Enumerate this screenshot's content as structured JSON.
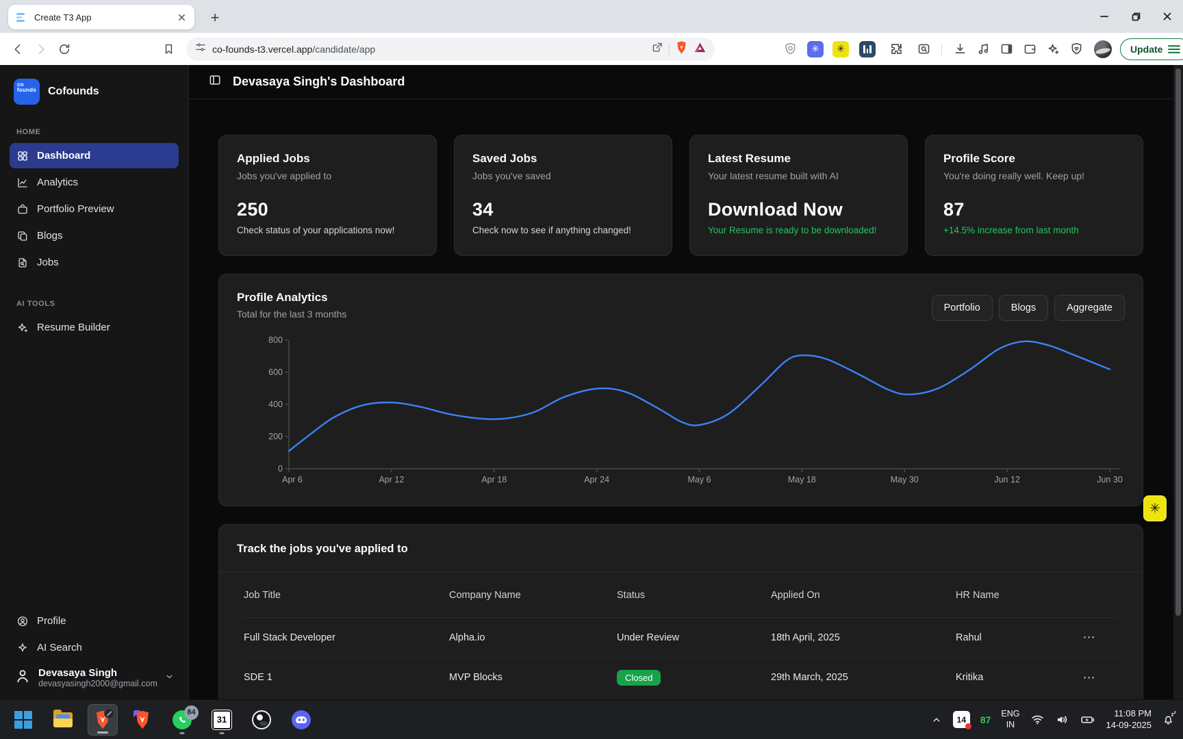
{
  "colors": {
    "accent_green": "#22c55e",
    "chart_line": "#3b82f6",
    "badge_green": "#17a34a",
    "active_nav": "#2b3b8f",
    "brand_blue": "#2563eb"
  },
  "browser": {
    "tab_title": "Create T3 App",
    "url_domain": "co-founds-t3.vercel.app",
    "url_path": "/candidate/app",
    "update_label": "Update"
  },
  "sidebar": {
    "brand": "Cofounds",
    "logo_line1": "co",
    "logo_line2": "founds",
    "section_home": "HOME",
    "section_ai": "AI TOOLS",
    "nav": [
      {
        "label": "Dashboard"
      },
      {
        "label": "Analytics"
      },
      {
        "label": "Portfolio Preview"
      },
      {
        "label": "Blogs"
      },
      {
        "label": "Jobs"
      }
    ],
    "ai_nav": [
      {
        "label": "Resume Builder"
      }
    ],
    "footer_nav": [
      {
        "label": "Profile"
      },
      {
        "label": "AI Search"
      }
    ],
    "user": {
      "name": "Devasaya Singh",
      "email": "devasyasingh2000@gmail.com"
    }
  },
  "header": {
    "title": "Devasaya Singh's Dashboard"
  },
  "stat_cards": [
    {
      "title": "Applied Jobs",
      "subtitle": "Jobs you've applied to",
      "value": "250",
      "footnote": "Check status of your applications now!"
    },
    {
      "title": "Saved Jobs",
      "subtitle": "Jobs you've saved",
      "value": "34",
      "footnote": "Check now to see if anything changed!"
    },
    {
      "title": "Latest Resume",
      "subtitle": "Your latest resume built with AI",
      "value": "Download Now",
      "footnote": "Your Resume is ready to be downloaded!"
    },
    {
      "title": "Profile Score",
      "subtitle": "You're doing really well. Keep up!",
      "value": "87",
      "footnote": "+14.5% increase from last month"
    }
  ],
  "analytics": {
    "title": "Profile Analytics",
    "subtitle": "Total for the last 3 months",
    "buttons": [
      "Portfolio",
      "Blogs",
      "Aggregate"
    ]
  },
  "chart_data": {
    "type": "line",
    "title": "Profile Analytics",
    "subtitle": "Total for the last 3 months",
    "x_ticks": [
      "Apr 6",
      "Apr 12",
      "Apr 18",
      "Apr 24",
      "May 6",
      "May 18",
      "May 30",
      "Jun 12",
      "Jun 30"
    ],
    "y_ticks": [
      0,
      200,
      400,
      600,
      800
    ],
    "ylim": [
      0,
      800
    ],
    "grid": false,
    "legend": "none",
    "line_color": "#3b82f6",
    "points": [
      {
        "x": 0.0,
        "y": 110
      },
      {
        "x": 0.025,
        "y": 210
      },
      {
        "x": 0.055,
        "y": 320
      },
      {
        "x": 0.09,
        "y": 395
      },
      {
        "x": 0.125,
        "y": 412
      },
      {
        "x": 0.16,
        "y": 385
      },
      {
        "x": 0.2,
        "y": 335
      },
      {
        "x": 0.25,
        "y": 308
      },
      {
        "x": 0.295,
        "y": 345
      },
      {
        "x": 0.335,
        "y": 445
      },
      {
        "x": 0.375,
        "y": 498
      },
      {
        "x": 0.41,
        "y": 478
      },
      {
        "x": 0.45,
        "y": 375
      },
      {
        "x": 0.478,
        "y": 292
      },
      {
        "x": 0.5,
        "y": 272
      },
      {
        "x": 0.535,
        "y": 340
      },
      {
        "x": 0.575,
        "y": 520
      },
      {
        "x": 0.605,
        "y": 668
      },
      {
        "x": 0.625,
        "y": 705
      },
      {
        "x": 0.655,
        "y": 682
      },
      {
        "x": 0.695,
        "y": 585
      },
      {
        "x": 0.73,
        "y": 492
      },
      {
        "x": 0.755,
        "y": 462
      },
      {
        "x": 0.79,
        "y": 498
      },
      {
        "x": 0.83,
        "y": 618
      },
      {
        "x": 0.865,
        "y": 745
      },
      {
        "x": 0.895,
        "y": 792
      },
      {
        "x": 0.925,
        "y": 768
      },
      {
        "x": 0.96,
        "y": 700
      },
      {
        "x": 1.0,
        "y": 618
      }
    ]
  },
  "jobs_table": {
    "title": "Track the jobs you've applied to",
    "columns": [
      "Job Title",
      "Company Name",
      "Status",
      "Applied On",
      "HR Name"
    ],
    "rows": [
      {
        "job_title": "Full Stack Developer",
        "company": "Alpha.io",
        "status": "Under Review",
        "applied_on": "18th April, 2025",
        "hr_name": "Rahul"
      },
      {
        "job_title": "SDE 1",
        "company": "MVP Blocks",
        "status": "Closed",
        "applied_on": "29th March, 2025",
        "hr_name": "Kritika"
      }
    ]
  },
  "taskbar": {
    "whatsapp_badge": "84",
    "calendar_icon_day": "31",
    "tray_calendar_day": "14",
    "tray_counter": "87",
    "lang_line1": "ENG",
    "lang_line2": "IN",
    "time": "11:08 PM",
    "date": "14-09-2025"
  },
  "icons": {
    "ellipsis": "⋯",
    "asterisk": "✳",
    "plus": "+"
  }
}
